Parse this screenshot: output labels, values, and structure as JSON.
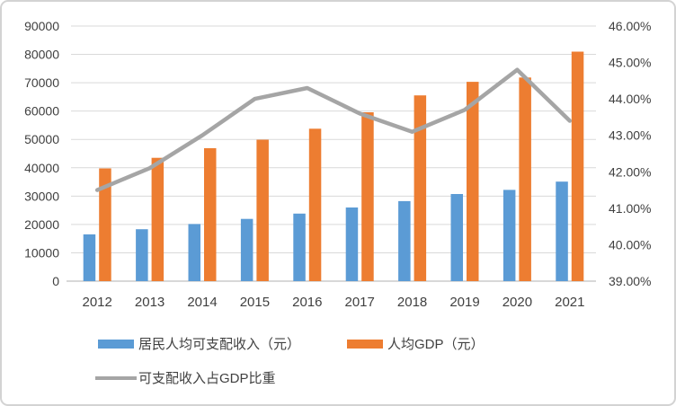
{
  "chart_data": {
    "type": "combo-bar-line",
    "title": "",
    "categories": [
      "2012",
      "2013",
      "2014",
      "2015",
      "2016",
      "2017",
      "2018",
      "2019",
      "2020",
      "2021"
    ],
    "series": [
      {
        "name": "居民人均可支配收入（元）",
        "type": "bar",
        "axis": "left",
        "color": "#5B9BD5",
        "values": [
          16510,
          18311,
          20167,
          21966,
          23821,
          25974,
          28228,
          30733,
          32189,
          35128
        ]
      },
      {
        "name": "人均GDP（元）",
        "type": "bar",
        "axis": "left",
        "color": "#ED7D31",
        "values": [
          39771,
          43497,
          46912,
          49922,
          53783,
          59592,
          65534,
          70328,
          71828,
          80976
        ]
      },
      {
        "name": "可支配收入占GDP比重",
        "type": "line",
        "axis": "right",
        "color": "#A5A5A5",
        "values": [
          41.5,
          42.1,
          43.0,
          44.0,
          44.3,
          43.6,
          43.1,
          43.7,
          44.8,
          43.4
        ]
      }
    ],
    "left_axis": {
      "min": 0,
      "max": 90000,
      "step": 10000,
      "tick_labels": [
        "0",
        "10000",
        "20000",
        "30000",
        "40000",
        "50000",
        "60000",
        "70000",
        "80000",
        "90000"
      ]
    },
    "right_axis": {
      "min": 39,
      "max": 46,
      "step": 1,
      "tick_labels": [
        "39.00%",
        "40.00%",
        "41.00%",
        "42.00%",
        "43.00%",
        "44.00%",
        "45.00%",
        "46.00%"
      ]
    },
    "grid": true,
    "legend_position": "bottom-left",
    "colors": {
      "grid": "#D9D9D9",
      "axis_line": "#C0C0C0",
      "text": "#404040"
    }
  }
}
